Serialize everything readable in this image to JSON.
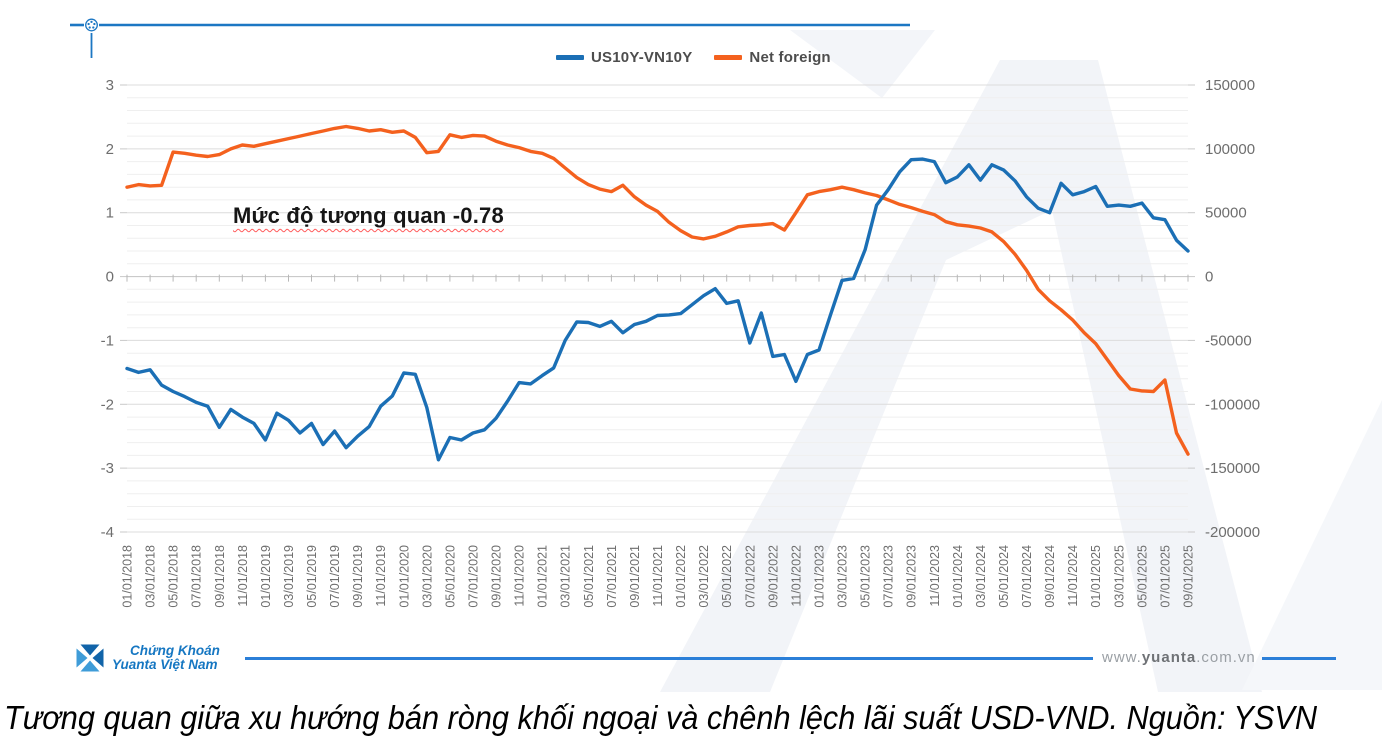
{
  "header": {
    "rule_color": "#1C77C3"
  },
  "annotation": {
    "text": "Mức độ tương quan -0.78",
    "correlation": -0.78
  },
  "chart_data": {
    "type": "line",
    "title": "",
    "xlabel": "",
    "ylabel": "",
    "grid": "on",
    "legend_position": "top",
    "x_start": "01/01/2018",
    "x_end": "09/01/2025",
    "x_label_step_months": 2,
    "x_labels": [
      "01/01/2018",
      "03/01/2018",
      "05/01/2018",
      "07/01/2018",
      "09/01/2018",
      "11/01/2018",
      "01/01/2019",
      "03/01/2019",
      "05/01/2019",
      "07/01/2019",
      "09/01/2019",
      "11/01/2019",
      "01/01/2020",
      "03/01/2020",
      "05/01/2020",
      "07/01/2020",
      "09/01/2020",
      "11/01/2020",
      "01/01/2021",
      "03/01/2021",
      "05/01/2021",
      "07/01/2021",
      "09/01/2021",
      "11/01/2021",
      "01/01/2022",
      "03/01/2022",
      "05/01/2022",
      "07/01/2022",
      "09/01/2022",
      "11/01/2022",
      "01/01/2023",
      "03/01/2023",
      "05/01/2023",
      "07/01/2023",
      "09/01/2023",
      "11/01/2023",
      "01/01/2024",
      "03/01/2024",
      "05/01/2024",
      "07/01/2024",
      "09/01/2024",
      "11/01/2024",
      "01/01/2025",
      "03/01/2025",
      "05/01/2025",
      "07/01/2025",
      "09/01/2025"
    ],
    "left_axis": {
      "min": -4,
      "max": 3,
      "ticks": [
        3,
        2,
        1,
        0,
        -1,
        -2,
        -3,
        -4
      ]
    },
    "right_axis": {
      "min": -200000,
      "max": 150000,
      "ticks": [
        150000,
        100000,
        50000,
        0,
        -50000,
        -100000,
        -150000,
        -200000
      ]
    },
    "series": [
      {
        "name": "US10Y-VN10Y",
        "axis": "left",
        "color": "#1B6FB5",
        "values": [
          -1.44,
          -1.5,
          -1.46,
          -1.7,
          -1.8,
          -1.88,
          -1.97,
          -2.03,
          -2.36,
          -2.08,
          -2.2,
          -2.3,
          -2.56,
          -2.14,
          -2.25,
          -2.45,
          -2.3,
          -2.63,
          -2.42,
          -2.68,
          -2.5,
          -2.35,
          -2.03,
          -1.87,
          -1.51,
          -1.53,
          -2.05,
          -2.87,
          -2.52,
          -2.56,
          -2.45,
          -2.4,
          -2.22,
          -1.95,
          -1.66,
          -1.68,
          -1.55,
          -1.43,
          -1.0,
          -0.71,
          -0.72,
          -0.78,
          -0.7,
          -0.88,
          -0.75,
          -0.7,
          -0.61,
          -0.6,
          -0.58,
          -0.44,
          -0.3,
          -0.19,
          -0.42,
          -0.38,
          -1.04,
          -0.57,
          -1.25,
          -1.22,
          -1.64,
          -1.22,
          -1.15,
          -0.6,
          -0.06,
          -0.03,
          0.42,
          1.12,
          1.36,
          1.64,
          1.83,
          1.84,
          1.8,
          1.47,
          1.56,
          1.75,
          1.51,
          1.75,
          1.67,
          1.5,
          1.25,
          1.07,
          1.0,
          1.46,
          1.28,
          1.33,
          1.41,
          1.1,
          1.12,
          1.1,
          1.15,
          0.92,
          0.89,
          0.57,
          0.4
        ]
      },
      {
        "name": "Net foreign",
        "axis": "right",
        "color": "#F4611E",
        "values": [
          70000,
          72000,
          71000,
          71500,
          97500,
          96500,
          95000,
          94000,
          95500,
          100000,
          103000,
          102000,
          104000,
          106000,
          108000,
          110000,
          112000,
          114000,
          116000,
          117500,
          116000,
          114000,
          115000,
          113000,
          114000,
          109000,
          97000,
          98000,
          111000,
          109000,
          110500,
          110000,
          106000,
          103000,
          101000,
          98000,
          96500,
          92500,
          85000,
          77500,
          72000,
          68500,
          66500,
          71500,
          62500,
          56000,
          51000,
          42500,
          36000,
          31000,
          29500,
          31500,
          35000,
          39000,
          40000,
          40500,
          41500,
          36500,
          50000,
          64000,
          66500,
          68000,
          70000,
          68000,
          65500,
          63500,
          60000,
          56500,
          54000,
          51000,
          48500,
          43000,
          40500,
          39500,
          38000,
          35000,
          27500,
          17500,
          5000,
          -10000,
          -19000,
          -26000,
          -34000,
          -44000,
          -52500,
          -65000,
          -77500,
          -88000,
          -89500,
          -90000,
          -81000,
          -122500,
          -139000
        ]
      }
    ]
  },
  "footer": {
    "brand_line1": "Chứng Khoán",
    "brand_line2": "Yuanta Việt Nam",
    "website_prefix": "www.",
    "website_domain": "yuanta",
    "website_suffix": ".com.vn",
    "line_color": "#2B7FD8"
  },
  "caption": "Tương quan giữa xu hướng bán ròng khối ngoại và chênh lệch lãi suất USD-VND. Nguồn: YSVN"
}
